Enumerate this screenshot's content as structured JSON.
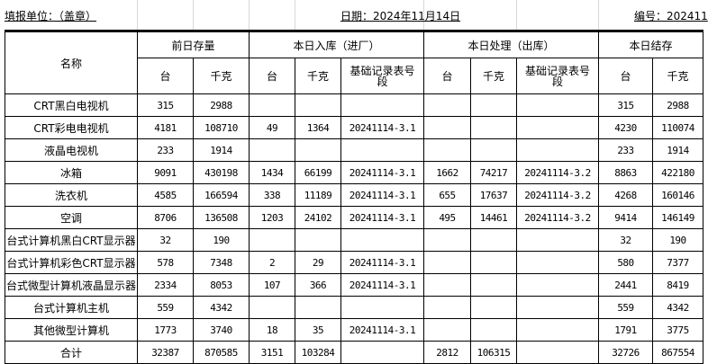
{
  "header": {
    "unit_label": "填报单位：（盖章）",
    "date_label": "日期：2024年11月14日",
    "number_label": "编号：202411"
  },
  "columns": {
    "name": "名称",
    "groups": [
      "前日存量",
      "本日入库（进厂）",
      "本日处理（出库）",
      "本日结存"
    ],
    "sub": [
      "台",
      "千克",
      "台",
      "千克",
      "基础记录表号段",
      "台",
      "千克",
      "基础记录表号段",
      "台",
      "千克"
    ]
  },
  "rows": [
    [
      "CRT黑白电视机",
      "315",
      "2988",
      "",
      "",
      "",
      "",
      "",
      "",
      "315",
      "2988"
    ],
    [
      "CRT彩电电视机",
      "4181",
      "108710",
      "49",
      "1364",
      "20241114-3.1",
      "",
      "",
      "",
      "4230",
      "110074"
    ],
    [
      "液晶电视机",
      "233",
      "1914",
      "",
      "",
      "",
      "",
      "",
      "",
      "233",
      "1914"
    ],
    [
      "冰箱",
      "9091",
      "430198",
      "1434",
      "66199",
      "20241114-3.1",
      "1662",
      "74217",
      "20241114-3.2",
      "8863",
      "422180"
    ],
    [
      "洗衣机",
      "4585",
      "166594",
      "338",
      "11189",
      "20241114-3.1",
      "655",
      "17637",
      "20241114-3.2",
      "4268",
      "160146"
    ],
    [
      "空调",
      "8706",
      "136508",
      "1203",
      "24102",
      "20241114-3.1",
      "495",
      "14461",
      "20241114-3.2",
      "9414",
      "146149"
    ],
    [
      "台式计算机黑白CRT显示器",
      "32",
      "190",
      "",
      "",
      "",
      "",
      "",
      "",
      "32",
      "190"
    ],
    [
      "台式计算机彩色CRT显示器",
      "578",
      "7348",
      "2",
      "29",
      "20241114-3.1",
      "",
      "",
      "",
      "580",
      "7377"
    ],
    [
      "台式微型计算机液晶显示器",
      "2334",
      "8053",
      "107",
      "366",
      "20241114-3.1",
      "",
      "",
      "",
      "2441",
      "8419"
    ],
    [
      "台式计算机主机",
      "559",
      "4342",
      "",
      "",
      "",
      "",
      "",
      "",
      "559",
      "4342"
    ],
    [
      "其他微型计算机",
      "1773",
      "3740",
      "18",
      "35",
      "20241114-3.1",
      "",
      "",
      "",
      "1791",
      "3775"
    ],
    [
      "合计",
      "32387",
      "870585",
      "3151",
      "103284",
      "",
      "2812",
      "106315",
      "",
      "32726",
      "867554"
    ]
  ]
}
